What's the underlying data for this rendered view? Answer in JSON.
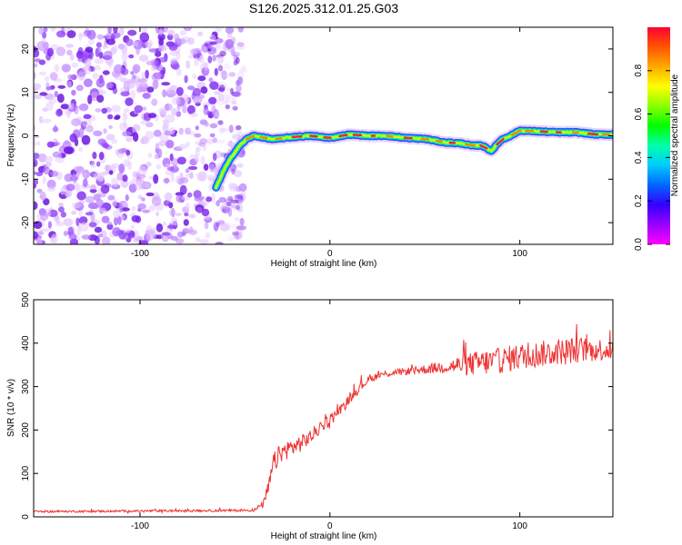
{
  "figure_title": "S126.2025.312.01.25.G03",
  "chart_data": [
    {
      "type": "heatmap",
      "name": "spectrogram",
      "xlabel": "Height of straight line (km)",
      "ylabel": "Frequency (Hz)",
      "xlim": [
        -156,
        149
      ],
      "ylim": [
        -25,
        25
      ],
      "x_ticks": [
        -100,
        0,
        100
      ],
      "x_tick_labels": [
        "-100",
        "0",
        "100"
      ],
      "y_ticks": [
        -20,
        -10,
        0,
        10,
        20
      ],
      "y_tick_labels": [
        "-20",
        "-10",
        "0",
        "10",
        "20"
      ],
      "ridge_frequency": {
        "x": [
          -60,
          -56,
          -52,
          -48,
          -44,
          -40,
          -30,
          -20,
          -10,
          0,
          10,
          20,
          30,
          40,
          50,
          60,
          70,
          75,
          80,
          85,
          90,
          95,
          100,
          110,
          120,
          130,
          140,
          149
        ],
        "y": [
          -12,
          -8,
          -5,
          -2.5,
          -0.8,
          0,
          -0.8,
          -0.3,
          0,
          -0.5,
          0.3,
          0,
          0,
          -0.5,
          -0.7,
          -1.5,
          -1.8,
          -2.3,
          -2.2,
          -3.5,
          -1,
          0,
          1.2,
          1,
          0.8,
          0.8,
          0.3,
          0.3
        ]
      },
      "noise_region_x": [
        -156,
        -50
      ],
      "colorbar": {
        "label": "Normalized spectral amplitude",
        "range": [
          0,
          1
        ],
        "ticks": [
          0.0,
          0.2,
          0.4,
          0.6,
          0.8
        ],
        "tick_labels": [
          "0.0",
          "0.2",
          "0.4",
          "0.6",
          "0.8"
        ],
        "colormap": [
          "#ff00ff",
          "#9900ff",
          "#3300ff",
          "#0066ff",
          "#00ccff",
          "#00ffaa",
          "#00ff00",
          "#88ff00",
          "#ffff00",
          "#ffaa00",
          "#ff5500",
          "#ff0033"
        ]
      }
    },
    {
      "type": "line",
      "name": "snr",
      "xlabel": "Height of straight line (km)",
      "ylabel": "SNR (10 * v/v)",
      "xlim": [
        -156,
        149
      ],
      "ylim": [
        0,
        500
      ],
      "x_ticks": [
        -100,
        0,
        100
      ],
      "x_tick_labels": [
        "-100",
        "0",
        "100"
      ],
      "y_ticks": [
        0,
        100,
        200,
        300,
        400,
        500
      ],
      "y_tick_labels": [
        "0",
        "100",
        "200",
        "300",
        "400",
        "500"
      ],
      "color": "#ee3333",
      "series": [
        {
          "name": "SNR envelope",
          "x": [
            -156,
            -40,
            -35,
            -32,
            -30,
            -27,
            -25,
            -20,
            -15,
            -10,
            -5,
            0,
            5,
            10,
            15,
            20,
            25,
            30,
            40,
            50,
            60,
            70,
            80,
            90,
            100,
            110,
            120,
            130,
            140,
            149
          ],
          "y": [
            12,
            15,
            30,
            70,
            120,
            140,
            150,
            160,
            170,
            185,
            205,
            225,
            245,
            270,
            295,
            315,
            325,
            330,
            335,
            340,
            345,
            350,
            355,
            360,
            370,
            375,
            380,
            385,
            385,
            385
          ],
          "noise_amplitude": [
            4,
            5,
            15,
            40,
            45,
            40,
            40,
            40,
            35,
            30,
            25,
            25,
            20,
            20,
            20,
            15,
            15,
            15,
            15,
            20,
            25,
            45,
            55,
            55,
            55,
            55,
            55,
            55,
            50,
            45
          ]
        }
      ]
    }
  ]
}
